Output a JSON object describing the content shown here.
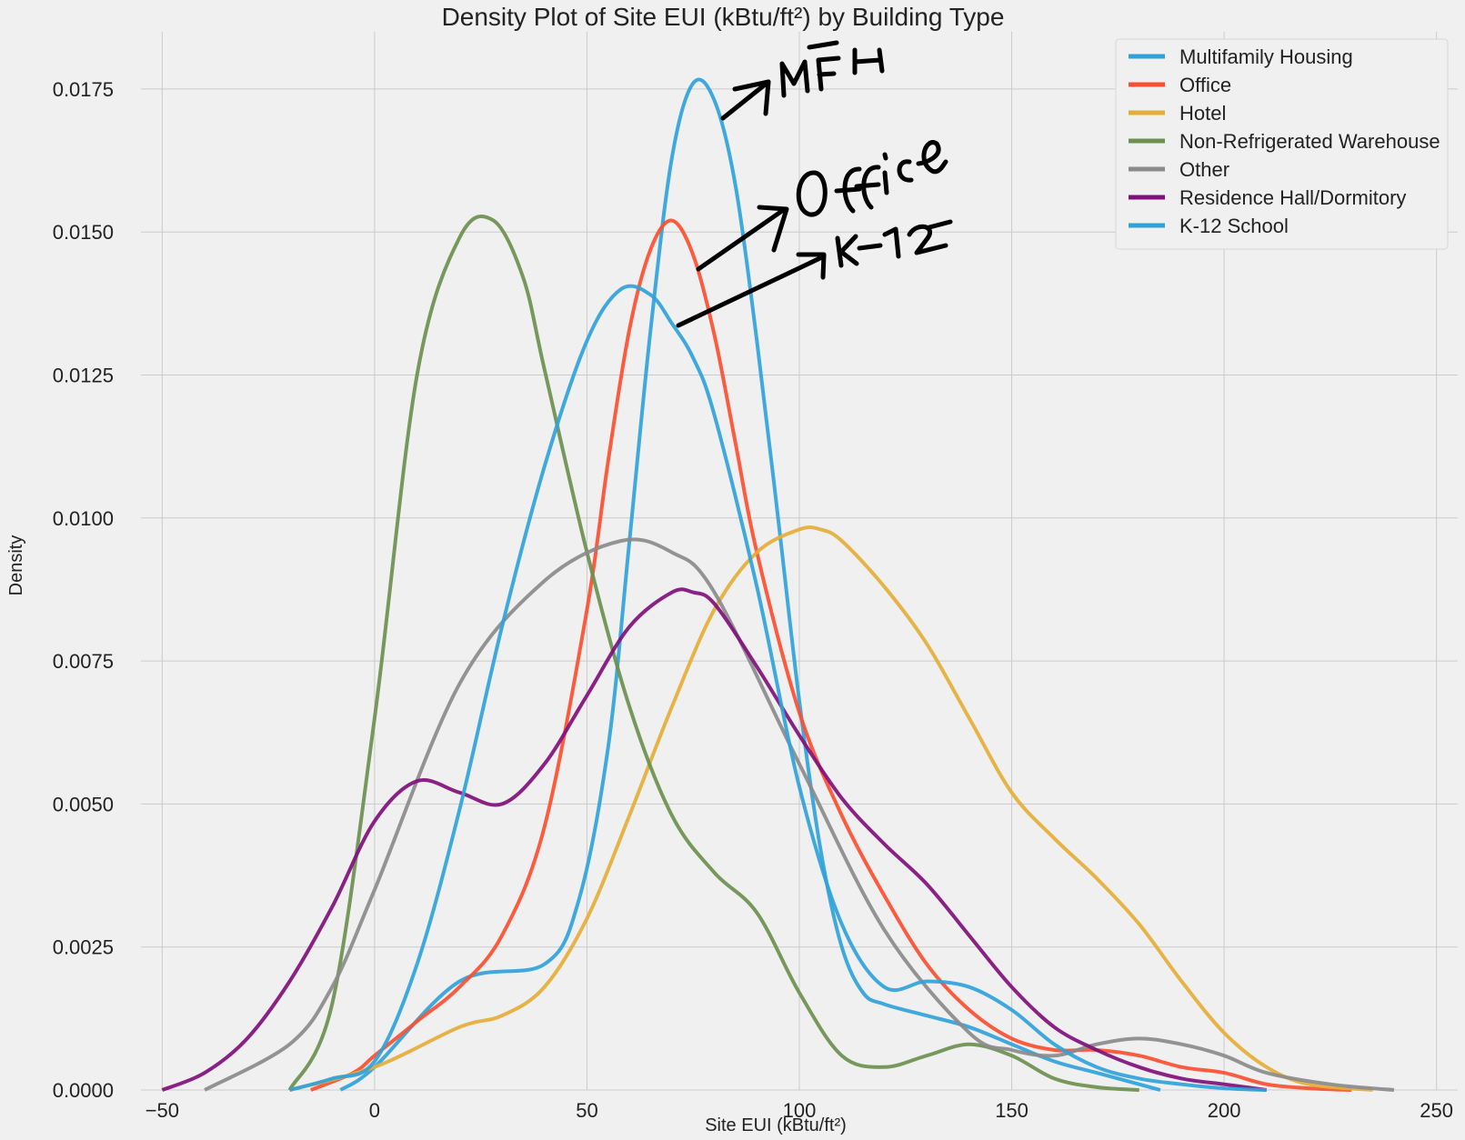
{
  "chart_data": {
    "type": "line",
    "title": "Density Plot of Site EUI (kBtu/ft²) by Building Type",
    "xlabel": "Site EUI (kBtu/ft²)",
    "ylabel": "Density",
    "xlim": [
      -55,
      255
    ],
    "ylim": [
      0,
      0.0185
    ],
    "xticks": [
      -50,
      0,
      50,
      100,
      150,
      200,
      250
    ],
    "xtick_labels": [
      "−50",
      "0",
      "50",
      "100",
      "150",
      "200",
      "250"
    ],
    "yticks": [
      0,
      0.0025,
      0.005,
      0.0075,
      0.01,
      0.0125,
      0.015,
      0.0175
    ],
    "ytick_labels": [
      "0.0000",
      "0.0025",
      "0.0050",
      "0.0075",
      "0.0100",
      "0.0125",
      "0.0150",
      "0.0175"
    ],
    "grid": true,
    "legend_position": "top-right",
    "series": [
      {
        "name": "Multifamily Housing",
        "color": "#30a2da",
        "x": [
          -8,
          0,
          20,
          40,
          48,
          55,
          60,
          65,
          70,
          75,
          80,
          85,
          90,
          95,
          100,
          105,
          110,
          115,
          120,
          130,
          140,
          150,
          160,
          170,
          180,
          185
        ],
        "y": [
          0,
          0.0004,
          0.0019,
          0.0022,
          0.0033,
          0.006,
          0.0096,
          0.0133,
          0.0163,
          0.0176,
          0.0173,
          0.0158,
          0.0131,
          0.01,
          0.0068,
          0.0042,
          0.0025,
          0.0017,
          0.0015,
          0.0013,
          0.0011,
          0.0008,
          0.0005,
          0.0003,
          0.0001,
          0
        ]
      },
      {
        "name": "Office",
        "color": "#fc4f30",
        "x": [
          -15,
          -5,
          0,
          10,
          20,
          30,
          40,
          50,
          55,
          60,
          65,
          70,
          75,
          80,
          85,
          90,
          100,
          110,
          120,
          130,
          140,
          150,
          160,
          170,
          180,
          190,
          200,
          210,
          220,
          230
        ],
        "y": [
          0,
          0.0003,
          0.0006,
          0.0012,
          0.0018,
          0.0027,
          0.0046,
          0.0084,
          0.011,
          0.0133,
          0.0147,
          0.0152,
          0.0146,
          0.0132,
          0.0113,
          0.0094,
          0.0066,
          0.0048,
          0.0034,
          0.0022,
          0.0014,
          0.0009,
          0.0007,
          0.0007,
          0.0006,
          0.0004,
          0.0003,
          0.0001,
          3e-05,
          0
        ]
      },
      {
        "name": "Hotel",
        "color": "#e5ae38",
        "x": [
          -20,
          0,
          20,
          30,
          40,
          50,
          60,
          70,
          80,
          90,
          100,
          105,
          110,
          120,
          130,
          140,
          150,
          160,
          170,
          180,
          190,
          200,
          210,
          220,
          235
        ],
        "y": [
          0,
          0.0004,
          0.0011,
          0.0013,
          0.0018,
          0.003,
          0.0048,
          0.0067,
          0.0084,
          0.0094,
          0.0098,
          0.0098,
          0.0096,
          0.0088,
          0.0078,
          0.0065,
          0.0052,
          0.0044,
          0.0037,
          0.0029,
          0.0019,
          0.001,
          0.0004,
          0.0001,
          0
        ]
      },
      {
        "name": "Non-Refrigerated Warehouse",
        "color": "#6d904f",
        "x": [
          -20,
          -10,
          0,
          10,
          20,
          28,
          35,
          40,
          50,
          60,
          70,
          80,
          90,
          100,
          110,
          120,
          130,
          140,
          150,
          160,
          170,
          180
        ],
        "y": [
          0,
          0.0015,
          0.0065,
          0.0125,
          0.0149,
          0.0152,
          0.0142,
          0.0126,
          0.0094,
          0.0067,
          0.0048,
          0.0038,
          0.0031,
          0.0017,
          0.0006,
          0.0004,
          0.0006,
          0.0008,
          0.0006,
          0.0002,
          5e-05,
          0
        ]
      },
      {
        "name": "Other",
        "color": "#8b8b8b",
        "x": [
          -40,
          -20,
          -10,
          0,
          20,
          40,
          58,
          70,
          80,
          100,
          120,
          140,
          150,
          160,
          170,
          180,
          190,
          200,
          210,
          225,
          240
        ],
        "y": [
          0,
          0.0008,
          0.0018,
          0.0035,
          0.0071,
          0.0089,
          0.0096,
          0.0094,
          0.0087,
          0.0057,
          0.0028,
          0.001,
          0.0007,
          0.0006,
          0.0008,
          0.0009,
          0.0008,
          0.0006,
          0.0003,
          0.0001,
          0
        ]
      },
      {
        "name": "Residence Hall/Dormitory",
        "color": "#810f7c",
        "x": [
          -50,
          -40,
          -30,
          -20,
          -10,
          0,
          10,
          20,
          30,
          40,
          50,
          60,
          70,
          75,
          80,
          90,
          100,
          110,
          120,
          130,
          140,
          150,
          160,
          170,
          180,
          190,
          200,
          210
        ],
        "y": [
          0,
          0.0003,
          0.0009,
          0.0019,
          0.0032,
          0.0047,
          0.0054,
          0.0052,
          0.005,
          0.0057,
          0.0069,
          0.0081,
          0.0087,
          0.0087,
          0.0085,
          0.0074,
          0.0062,
          0.0051,
          0.0043,
          0.0036,
          0.0027,
          0.0018,
          0.0011,
          0.0007,
          0.0004,
          0.0002,
          0.0001,
          0
        ]
      },
      {
        "name": "K-12 School",
        "color": "#30a2da",
        "x": [
          -20,
          -10,
          0,
          10,
          20,
          30,
          40,
          50,
          58,
          65,
          70,
          75,
          80,
          90,
          100,
          110,
          120,
          130,
          140,
          150,
          160,
          170,
          180,
          190,
          200,
          210
        ],
        "y": [
          0,
          0.0002,
          0.0005,
          0.0022,
          0.0049,
          0.0081,
          0.0109,
          0.0131,
          0.014,
          0.0139,
          0.0134,
          0.0128,
          0.0118,
          0.0088,
          0.0053,
          0.0029,
          0.0018,
          0.0019,
          0.0018,
          0.0014,
          0.0008,
          0.0004,
          0.0002,
          0.0001,
          3e-05,
          0
        ]
      }
    ],
    "annotations": [
      "MFH",
      "Office",
      "K-12"
    ]
  }
}
